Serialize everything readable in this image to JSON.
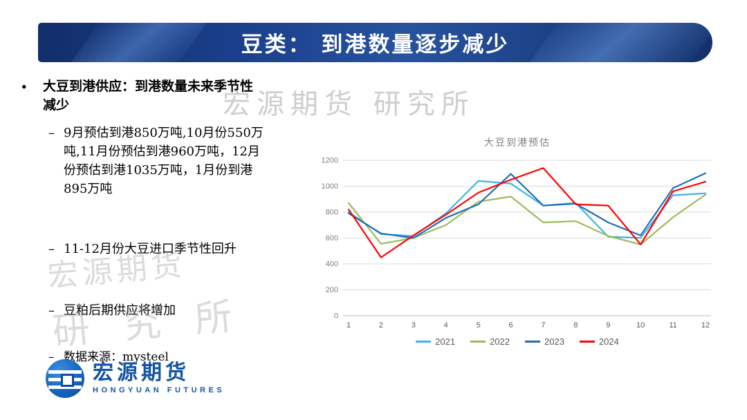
{
  "slide": {
    "title": "豆类： 到港数量逐步减少",
    "markers": {
      "bullet": "•",
      "dash": "–"
    },
    "main_bullet": "大豆到港供应：到港数量未来季节性减少",
    "sub_bullets": [
      "9月预估到港850万吨,10月份550万吨,11月份预估到港960万吨，12月份预估到港1035万吨，1月份到港895万吨",
      "11-12月份大豆进口季节性回升",
      "豆粕后期供应将增加",
      "数据来源：mysteel"
    ],
    "watermark_top": "宏源期货 研究所",
    "watermark_side": {
      "line1": "宏源期货",
      "line2": "研 究 所"
    },
    "logo": {
      "name": "宏源期货",
      "subtitle": "HONGYUAN FUTURES"
    }
  },
  "chart_data": {
    "type": "line",
    "title": "大豆到港预估",
    "x": [
      1,
      2,
      3,
      4,
      5,
      6,
      7,
      8,
      9,
      10,
      11,
      12
    ],
    "xlabel": "",
    "ylabel": "",
    "ylim": [
      0,
      1200
    ],
    "yticks": [
      0,
      200,
      400,
      600,
      800,
      1000,
      1200
    ],
    "grid": true,
    "legend_position": "bottom",
    "series": [
      {
        "name": "2021",
        "color": "#3BB4E5",
        "values": [
          800,
          630,
          615,
          790,
          1040,
          1020,
          850,
          870,
          610,
          600,
          930,
          945
        ]
      },
      {
        "name": "2022",
        "color": "#9BBB59",
        "values": [
          870,
          555,
          600,
          700,
          880,
          920,
          720,
          730,
          615,
          550,
          760,
          935
        ]
      },
      {
        "name": "2023",
        "color": "#1F6FB5",
        "values": [
          790,
          635,
          600,
          755,
          860,
          1095,
          850,
          865,
          720,
          620,
          985,
          1100
        ]
      },
      {
        "name": "2024",
        "color": "#FF0000",
        "values": [
          820,
          450,
          620,
          780,
          950,
          1050,
          1140,
          860,
          850,
          550,
          960,
          1035
        ]
      }
    ]
  }
}
